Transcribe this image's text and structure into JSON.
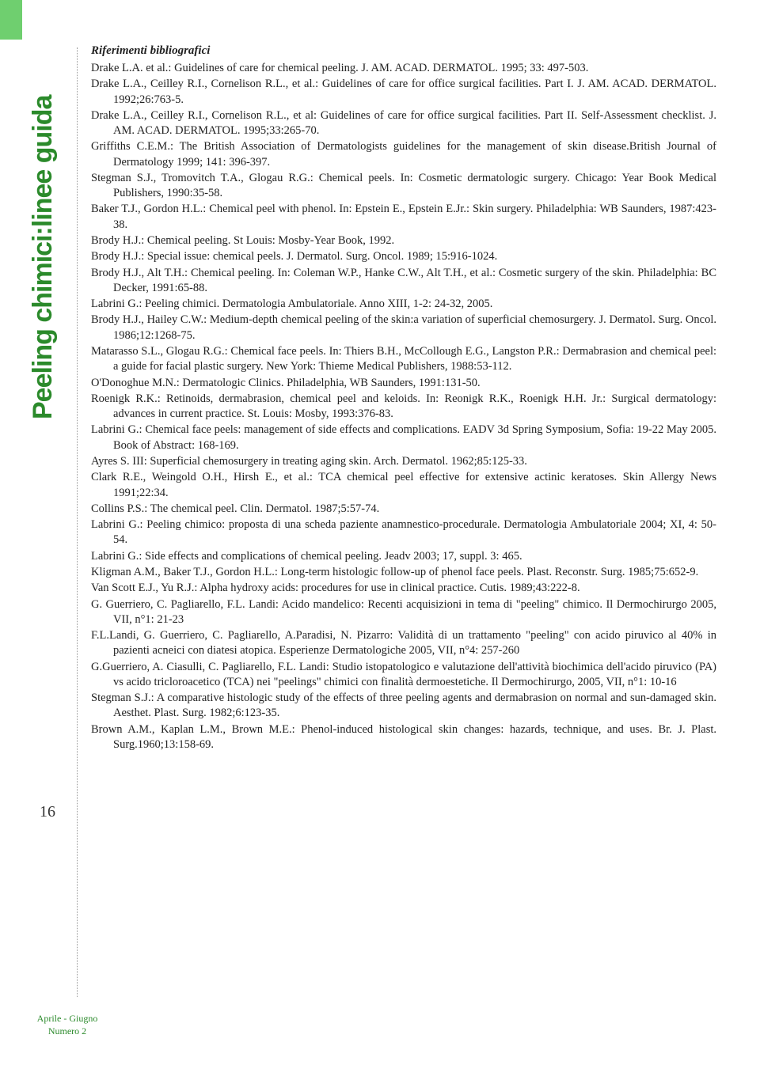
{
  "side_title": "Peeling chimici:linee guida",
  "page_number": "16",
  "section_title": "Riferimenti bibliografici",
  "footer_line1": "Aprile - Giugno",
  "footer_line2": "Numero 2",
  "references": [
    "Drake L.A. et al.: Guidelines of care for chemical peeling. J. AM. ACAD. DERMATOL. 1995; 33: 497-503.",
    "Drake L.A., Ceilley R.I., Cornelison R.L., et al.: Guidelines of care for office surgical facilities. Part I. J. AM. ACAD. DERMATOL. 1992;26:763-5.",
    "Drake L.A., Ceilley R.I., Cornelison R.L., et al: Guidelines of care for office surgical facilities. Part II. Self-Assessment checklist. J. AM. ACAD. DERMATOL. 1995;33:265-70.",
    "Griffiths C.E.M.: The British Association of Dermatologists guidelines for the management of skin disease.British Journal of Dermatology 1999; 141: 396-397.",
    "Stegman S.J., Tromovitch T.A., Glogau R.G.: Chemical peels. In: Cosmetic dermatologic surgery. Chicago: Year Book Medical Publishers, 1990:35-58.",
    "Baker T.J., Gordon H.L.: Chemical peel with phenol. In: Epstein E., Epstein E.Jr.: Skin surgery. Philadelphia: WB Saunders, 1987:423-38.",
    "Brody H.J.: Chemical peeling. St Louis: Mosby-Year Book, 1992.",
    "Brody H.J.: Special issue: chemical peels. J. Dermatol. Surg. Oncol. 1989; 15:916-1024.",
    "Brody H.J., Alt T.H.: Chemical peeling. In: Coleman W.P., Hanke C.W., Alt T.H., et al.: Cosmetic surgery of the skin. Philadelphia: BC Decker, 1991:65-88.",
    "Labrini G.: Peeling chimici. Dermatologia Ambulatoriale. Anno XIII, 1-2: 24-32, 2005.",
    "Brody H.J., Hailey C.W.: Medium-depth chemical peeling of the skin:a variation of superficial chemosurgery. J. Dermatol. Surg. Oncol. 1986;12:1268-75.",
    "Matarasso S.L., Glogau R.G.: Chemical face peels. In: Thiers B.H., McCollough E.G., Langston P.R.: Dermabrasion and chemical peel: a guide for facial plastic surgery. New York: Thieme Medical Publishers, 1988:53-112.",
    "O'Donoghue M.N.: Dermatologic Clinics. Philadelphia, WB Saunders, 1991:131-50.",
    "Roenigk R.K.: Retinoids, dermabrasion, chemical peel and keloids. In: Reonigk R.K., Roenigk H.H. Jr.: Surgical dermatology: advances in current practice. St. Louis: Mosby, 1993:376-83.",
    "Labrini G.: Chemical face peels: management of side effects and complications. EADV 3d Spring Symposium, Sofia: 19-22 May 2005. Book of Abstract: 168-169.",
    "Ayres S. III: Superficial chemosurgery in treating aging skin. Arch. Dermatol. 1962;85:125-33.",
    "Clark R.E., Weingold O.H., Hirsh E., et al.: TCA chemical peel effective for extensive actinic keratoses. Skin Allergy News 1991;22:34.",
    "Collins P.S.: The chemical peel. Clin. Dermatol. 1987;5:57-74.",
    "Labrini G.: Peeling chimico: proposta di una scheda paziente anamnestico-procedurale. Dermatologia Ambulatoriale 2004; XI, 4: 50-54.",
    "Labrini G.: Side effects and complications of chemical peeling. Jeadv 2003; 17, suppl. 3: 465.",
    "Kligman A.M., Baker T.J., Gordon H.L.: Long-term histologic follow-up of phenol face peels. Plast. Reconstr. Surg. 1985;75:652-9.",
    "Van Scott E.J., Yu R.J.: Alpha hydroxy acids: procedures for use in clinical practice. Cutis. 1989;43:222-8.",
    "G. Guerriero, C. Pagliarello, F.L. Landi: Acido mandelico: Recenti acquisizioni in tema di \"peeling\" chimico. Il Dermochirurgo 2005, VII, n°1: 21-23",
    "F.L.Landi, G. Guerriero, C. Pagliarello, A.Paradisi, N. Pizarro: Validità di un trattamento \"peeling\" con acido piruvico al 40% in pazienti acneici con diatesi atopica. Esperienze Dermatologiche 2005, VII, n°4: 257-260",
    "G.Guerriero, A. Ciasulli, C. Pagliarello, F.L. Landi: Studio istopatologico e valutazione dell'attività biochimica dell'acido piruvico (PA) vs acido tricloroacetico (TCA) nei \"peelings\" chimici con finalità dermoestetiche. Il Dermochirurgo, 2005, VII, n°1: 10-16",
    "Stegman S.J.: A comparative histologic study of the effects of three peeling agents and dermabrasion on normal and sun-damaged skin. Aesthet. Plast. Surg. 1982;6:123-35.",
    "Brown A.M., Kaplan L.M., Brown M.E.: Phenol-induced histological skin changes: hazards, technique, and uses. Br. J. Plast. Surg.1960;13:158-69."
  ]
}
